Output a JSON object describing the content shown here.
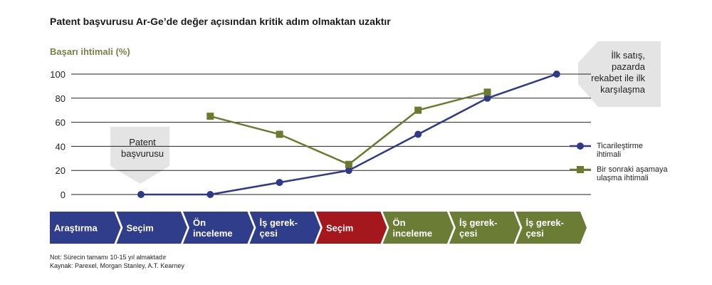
{
  "chart_data": {
    "type": "line",
    "title": "Patent başvurusu Ar-Ge’de değer açısından kritik adım olmaktan uzaktır",
    "y_label": "Başarı ihtimali (%)",
    "categories": [
      null,
      null,
      null,
      null,
      null,
      null,
      null
    ],
    "series": [
      {
        "name": "Ticarileştirme ihtimali",
        "color": "#2e3a87",
        "marker": "circle",
        "values": [
          0,
          0,
          10,
          20,
          50,
          80,
          100
        ]
      },
      {
        "name": "Bir sonraki aşamaya ulaşma ihtimali",
        "color": "#6b7a2e",
        "marker": "square",
        "values": [
          null,
          65,
          50,
          25,
          70,
          85,
          null
        ]
      }
    ],
    "ylim": [
      0,
      100
    ],
    "yticks": [
      0,
      20,
      40,
      60,
      80,
      100
    ],
    "grid": true,
    "legend": "right",
    "stages": [
      {
        "lines": [
          "Araştırma"
        ],
        "color": "#2f3d8a"
      },
      {
        "lines": [
          "Seçim"
        ],
        "color": "#2f3d8a"
      },
      {
        "lines": [
          "Ön",
          "inceleme"
        ],
        "color": "#2f3d8a"
      },
      {
        "lines": [
          "İş gerek-",
          "çesi"
        ],
        "color": "#2f3d8a"
      },
      {
        "lines": [
          "Seçim"
        ],
        "color": "#a3171d"
      },
      {
        "lines": [
          "Ön",
          "inceleme"
        ],
        "color": "#6b7d35"
      },
      {
        "lines": [
          "İş gerek-",
          "çesi"
        ],
        "color": "#6b7d35"
      },
      {
        "lines": [
          "İş gerek-",
          "çesi"
        ],
        "color": "#6b7d35"
      }
    ],
    "annotations": [
      "Patent başvurusu",
      "İlk satış, pazarda rekabet ile ilk karşılaşma"
    ],
    "note": "Not: Sürecin tamamı 10-15 yıl almaktadır",
    "source": "Kaynak: Parexel, Morgan Stanley, A.T. Kearney"
  }
}
